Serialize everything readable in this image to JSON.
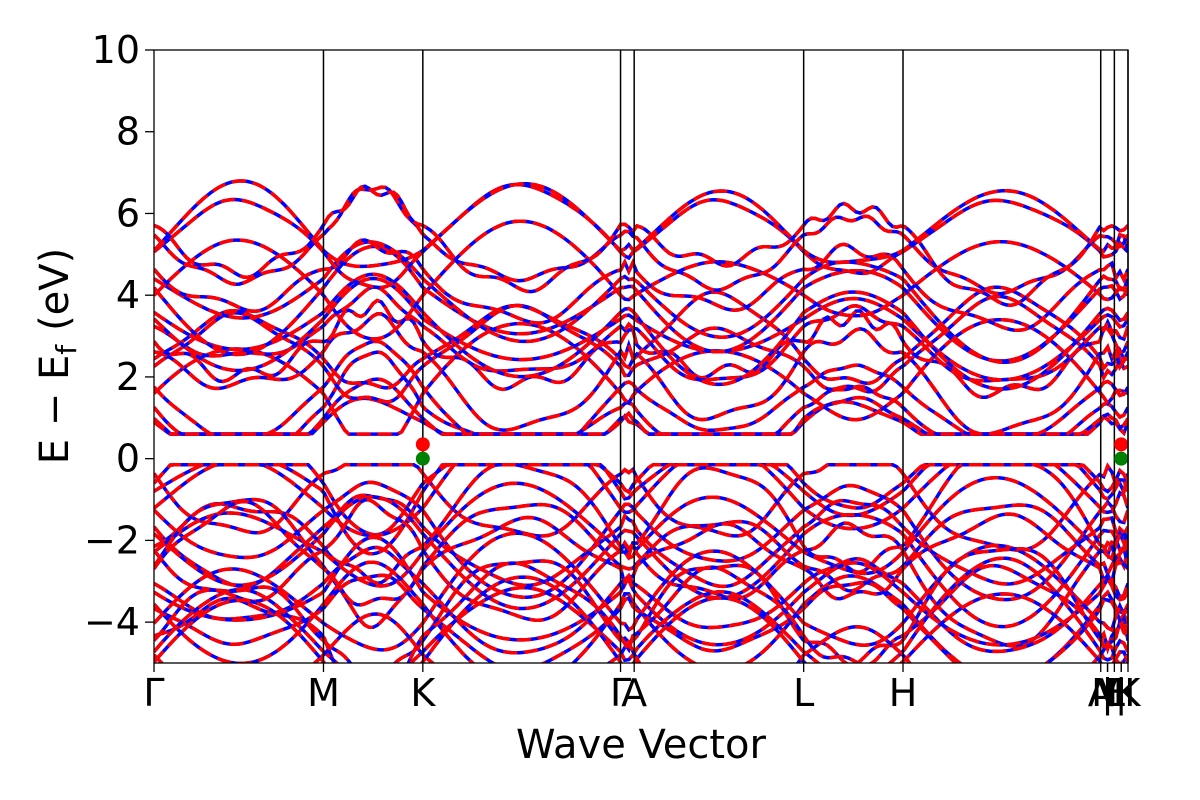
{
  "chart_data": {
    "type": "line",
    "xlabel": "Wave Vector",
    "ylabel": "E − E_f (eV)",
    "ylabel_parts": {
      "main": "E − E",
      "sub": "f",
      "unit": "(eV)"
    },
    "ylim": [
      -5,
      10
    ],
    "yticks": [
      "−4",
      "−2",
      "0",
      "2",
      "4",
      "6",
      "8",
      "10"
    ],
    "ytick_values": [
      -4,
      -2,
      0,
      2,
      4,
      6,
      8,
      10
    ],
    "xlim": [
      0,
      1
    ],
    "kpoints": [
      {
        "label": "Γ",
        "x": 0.0
      },
      {
        "label": "M",
        "x": 0.174
      },
      {
        "label": "K",
        "x": 0.276
      },
      {
        "label": "Γ",
        "x": 0.479
      },
      {
        "label": "A",
        "x": 0.493
      },
      {
        "label": "L",
        "x": 0.667
      },
      {
        "label": "H",
        "x": 0.769
      },
      {
        "label": "A",
        "x": 0.972
      },
      {
        "label": "L",
        "x": 0.986
      },
      {
        "label": "|",
        "x": 0.979
      },
      {
        "label": "M",
        "x": 0.979
      },
      {
        "label": "|",
        "x": 0.993
      },
      {
        "label": "H",
        "x": 0.993
      },
      {
        "label": "K",
        "x": 1.0
      }
    ],
    "vertical_lines": [
      0.174,
      0.276,
      0.479,
      0.493,
      0.667,
      0.769,
      0.972,
      0.986,
      1.0
    ],
    "grid": false,
    "legend": "none",
    "colors": {
      "spin_up": "#0000ff",
      "spin_down": "#ff0000",
      "cbm": "#ff0000",
      "vbm": "#008000"
    },
    "series": [
      {
        "style": "solid",
        "color": "#0000ff"
      },
      {
        "style": "dashed",
        "color": "#ff0000"
      }
    ],
    "markers": [
      {
        "kind": "cbm",
        "x": 0.276,
        "y": 0.35,
        "color": "#ff0000"
      },
      {
        "kind": "vbm",
        "x": 0.276,
        "y": 0.0,
        "color": "#008000"
      },
      {
        "kind": "cbm",
        "x": 0.993,
        "y": 0.35,
        "color": "#ff0000"
      },
      {
        "kind": "vbm",
        "x": 0.993,
        "y": 0.0,
        "color": "#008000"
      }
    ],
    "band_edges": {
      "vbm": 0.0,
      "cbm": 0.35
    }
  }
}
